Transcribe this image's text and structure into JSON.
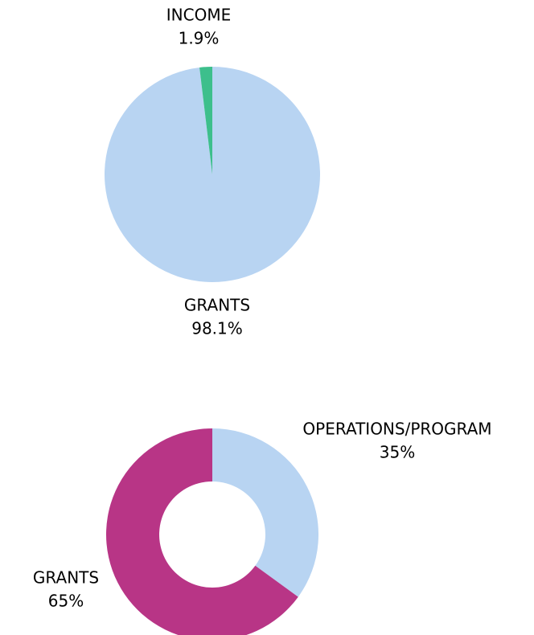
{
  "chart_data": [
    {
      "type": "pie",
      "categories": [
        "GRANTS",
        "INCOME"
      ],
      "values": [
        98.1,
        1.9
      ],
      "value_labels": [
        "98.1%",
        "1.9%"
      ],
      "colors": [
        "#b8d4f2",
        "#3dbf8c"
      ]
    },
    {
      "type": "donut",
      "categories": [
        "OPERATIONS/PROGRAM",
        "GRANTS"
      ],
      "values": [
        35,
        65
      ],
      "value_labels": [
        "35%",
        "65%"
      ],
      "colors": [
        "#b8d4f2",
        "#b83586"
      ]
    }
  ]
}
